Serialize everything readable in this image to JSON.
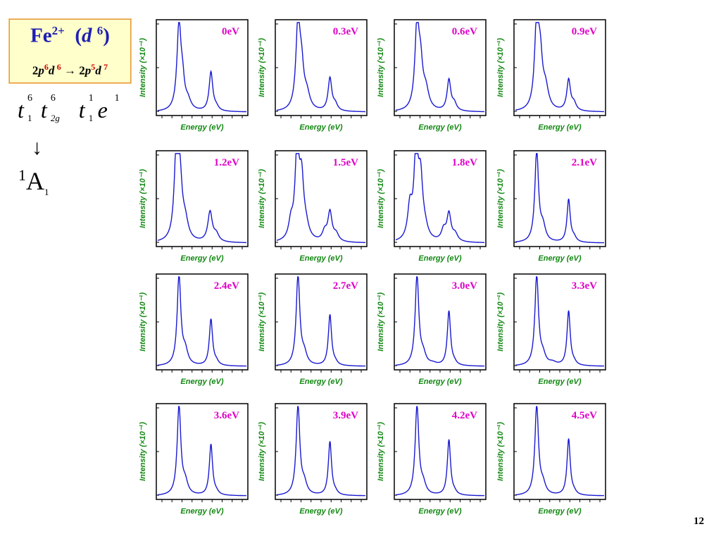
{
  "header": {
    "ion": "Fe",
    "charge": "2+",
    "config_open": "(",
    "config_d": "d",
    "config_n": "6",
    "config_close": ")",
    "transition": {
      "from_2": "2",
      "from_p": "p",
      "from_p_exp": "6",
      "from_d": "d",
      "from_d_exp": "6",
      "arrow": "→",
      "to_2": "2",
      "to_p": "p",
      "to_p_exp": "5",
      "to_d": "d",
      "to_d_exp": "7"
    }
  },
  "configuration": {
    "t1": "t",
    "t1_sup": "6",
    "t1_sub": "1",
    "t2g": "t",
    "t2g_sup": "6",
    "t2g_sub": "2g",
    "t1b": "t",
    "t1b_sup": "1",
    "t1b_sub": "1",
    "e": "e",
    "e_sup": "1"
  },
  "state": {
    "arrow": "↓",
    "sup": "1",
    "symbol": "A",
    "sub": "1"
  },
  "page_number": "12",
  "colors": {
    "curve": "#1a1ad0",
    "panel_label": "#e000c8",
    "axis_label": "#118811",
    "title": "#1f1fb4",
    "superscript_red": "#cc0000"
  },
  "chart_data": {
    "type": "line",
    "rows": 4,
    "cols": 4,
    "ylabel": "Intensity (×10⁻¹)",
    "xlabel": "Energy  (eV)",
    "x_range": [
      0,
      10
    ],
    "y_range": [
      0,
      10
    ],
    "ticks": {
      "x_count": 9,
      "y_count": 3
    },
    "panels": [
      {
        "label": "0eV",
        "baseline": 0.15,
        "peaks": [
          [
            2.4,
            9.4,
            0.28
          ],
          [
            2.8,
            2.5,
            0.25
          ],
          [
            3.4,
            1.0,
            0.4
          ],
          [
            6.0,
            4.3,
            0.25
          ],
          [
            6.6,
            0.4,
            0.3
          ]
        ]
      },
      {
        "label": "0.3eV",
        "baseline": 0.15,
        "peaks": [
          [
            2.4,
            9.4,
            0.28
          ],
          [
            2.8,
            4.0,
            0.3
          ],
          [
            3.4,
            1.6,
            0.4
          ],
          [
            6.0,
            3.6,
            0.25
          ],
          [
            6.6,
            0.7,
            0.3
          ]
        ]
      },
      {
        "label": "0.6eV",
        "baseline": 0.15,
        "peaks": [
          [
            2.4,
            9.0,
            0.28
          ],
          [
            2.8,
            4.3,
            0.3
          ],
          [
            3.4,
            2.0,
            0.4
          ],
          [
            6.0,
            3.4,
            0.25
          ],
          [
            6.6,
            0.8,
            0.3
          ]
        ]
      },
      {
        "label": "0.9eV",
        "baseline": 0.15,
        "peaks": [
          [
            2.4,
            9.4,
            0.28
          ],
          [
            2.8,
            5.0,
            0.3
          ],
          [
            3.4,
            2.2,
            0.4
          ],
          [
            6.0,
            3.4,
            0.25
          ],
          [
            6.6,
            0.8,
            0.3
          ]
        ]
      },
      {
        "label": "1.2eV",
        "baseline": 0.15,
        "peaks": [
          [
            2.1,
            9.5,
            0.28
          ],
          [
            2.5,
            6.2,
            0.3
          ],
          [
            3.1,
            1.9,
            0.4
          ],
          [
            5.9,
            3.3,
            0.3
          ],
          [
            6.6,
            0.8,
            0.35
          ]
        ]
      },
      {
        "label": "1.5eV",
        "baseline": 0.15,
        "peaks": [
          [
            1.6,
            1.8,
            0.3
          ],
          [
            2.3,
            9.6,
            0.28
          ],
          [
            2.8,
            6.2,
            0.3
          ],
          [
            3.3,
            1.2,
            0.4
          ],
          [
            5.4,
            1.0,
            0.3
          ],
          [
            6.0,
            3.2,
            0.28
          ],
          [
            6.7,
            0.8,
            0.35
          ]
        ]
      },
      {
        "label": "1.8eV",
        "baseline": 0.15,
        "peaks": [
          [
            1.6,
            3.5,
            0.3
          ],
          [
            2.3,
            9.6,
            0.28
          ],
          [
            2.8,
            6.2,
            0.3
          ],
          [
            3.3,
            1.0,
            0.4
          ],
          [
            5.4,
            1.2,
            0.3
          ],
          [
            6.0,
            3.0,
            0.28
          ],
          [
            6.7,
            0.8,
            0.35
          ]
        ]
      },
      {
        "label": "2.1eV",
        "baseline": 0.15,
        "peaks": [
          [
            2.4,
            10.0,
            0.25
          ],
          [
            3.1,
            1.6,
            0.35
          ],
          [
            6.0,
            4.7,
            0.22
          ],
          [
            6.6,
            0.5,
            0.3
          ]
        ]
      },
      {
        "label": "2.4eV",
        "baseline": 0.15,
        "peaks": [
          [
            2.4,
            9.9,
            0.25
          ],
          [
            3.1,
            1.5,
            0.35
          ],
          [
            6.0,
            5.1,
            0.22
          ],
          [
            6.6,
            0.4,
            0.3
          ]
        ]
      },
      {
        "label": "2.7eV",
        "baseline": 0.15,
        "peaks": [
          [
            2.4,
            9.9,
            0.25
          ],
          [
            3.1,
            1.2,
            0.35
          ],
          [
            6.0,
            5.6,
            0.22
          ],
          [
            6.6,
            0.3,
            0.3
          ]
        ]
      },
      {
        "label": "3.0eV",
        "baseline": 0.15,
        "peaks": [
          [
            2.4,
            9.9,
            0.25
          ],
          [
            3.1,
            1.1,
            0.35
          ],
          [
            4.2,
            0.2,
            0.5
          ],
          [
            6.0,
            6.0,
            0.22
          ],
          [
            6.6,
            0.3,
            0.3
          ]
        ]
      },
      {
        "label": "3.3eV",
        "baseline": 0.15,
        "peaks": [
          [
            2.4,
            9.9,
            0.25
          ],
          [
            3.1,
            1.0,
            0.35
          ],
          [
            4.2,
            0.3,
            0.5
          ],
          [
            6.0,
            6.0,
            0.22
          ],
          [
            6.6,
            0.3,
            0.3
          ]
        ]
      },
      {
        "label": "3.6eV",
        "baseline": 0.15,
        "peaks": [
          [
            2.4,
            9.8,
            0.25
          ],
          [
            3.1,
            1.3,
            0.35
          ],
          [
            6.0,
            5.6,
            0.22
          ],
          [
            6.6,
            0.3,
            0.3
          ]
        ]
      },
      {
        "label": "3.9eV",
        "baseline": 0.15,
        "peaks": [
          [
            2.4,
            9.8,
            0.25
          ],
          [
            3.1,
            1.2,
            0.35
          ],
          [
            6.0,
            5.9,
            0.22
          ],
          [
            6.6,
            0.3,
            0.3
          ]
        ]
      },
      {
        "label": "4.2eV",
        "baseline": 0.15,
        "peaks": [
          [
            2.4,
            9.8,
            0.25
          ],
          [
            3.1,
            1.1,
            0.35
          ],
          [
            6.0,
            6.1,
            0.22
          ],
          [
            6.6,
            0.3,
            0.3
          ]
        ]
      },
      {
        "label": "4.5eV",
        "baseline": 0.15,
        "peaks": [
          [
            2.4,
            9.8,
            0.25
          ],
          [
            3.1,
            1.1,
            0.35
          ],
          [
            6.0,
            6.2,
            0.22
          ],
          [
            6.6,
            0.3,
            0.3
          ]
        ]
      }
    ]
  }
}
